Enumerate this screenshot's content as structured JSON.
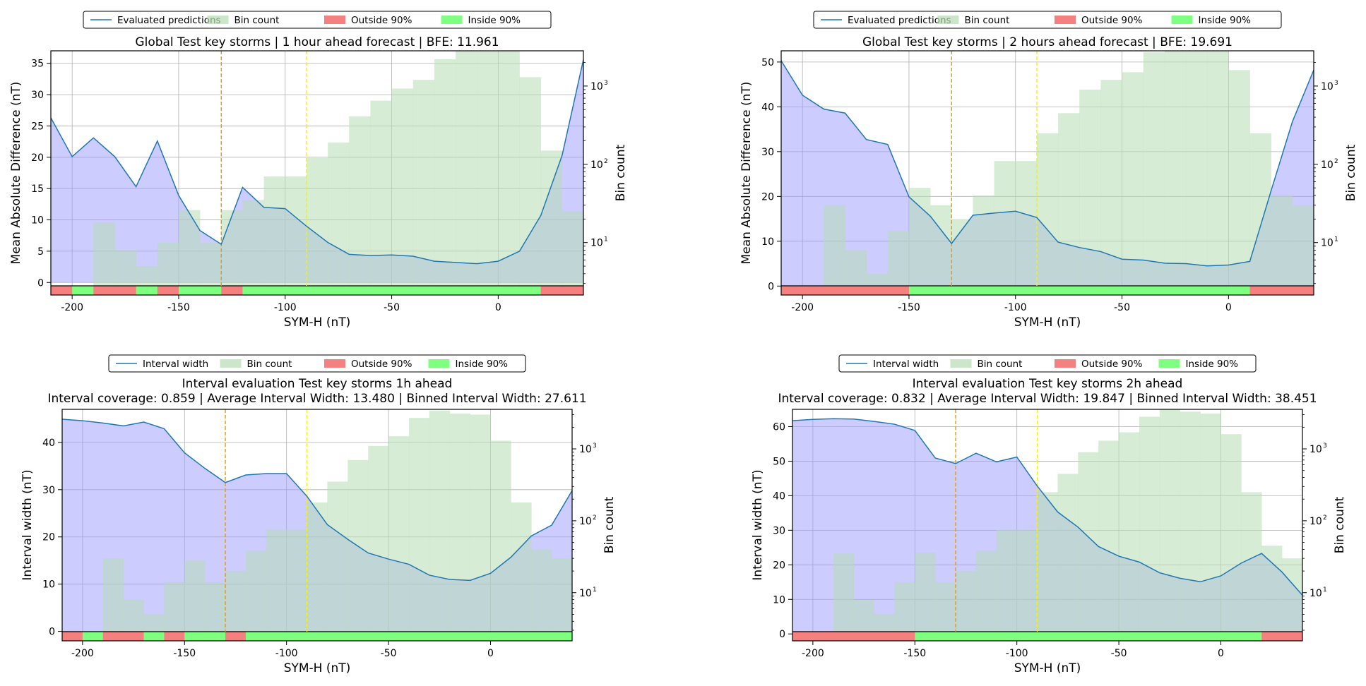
{
  "colors": {
    "line": "#1f77b4",
    "model_fill": "#9999ff",
    "bin_fill": "#b7dcb2",
    "outside": "#f48080",
    "inside": "#7fff7f",
    "vline_orange": "#e09a1a",
    "vline_yellow": "#f0f020",
    "grid": "#b0b0b0"
  },
  "bin_edges": [
    -210,
    -200,
    -190,
    -180,
    -170,
    -160,
    -150,
    -140,
    -130,
    -120,
    -110,
    -100,
    -90,
    -80,
    -70,
    -60,
    -50,
    -40,
    -30,
    -20,
    -10,
    0,
    10,
    20,
    30,
    40
  ],
  "chart_data": [
    {
      "type": "area",
      "title": "Global Test key storms | 1 hour ahead forecast | BFE: 11.961",
      "subtitle": "",
      "xlabel": "SYM-H (nT)",
      "ylabel": "Mean Absolute Difference (nT)",
      "y2label": "Bin count",
      "xlim": [
        -210,
        40
      ],
      "ylim": [
        -2,
        37
      ],
      "y2log": [
        0.33,
        3.45
      ],
      "xticks": [
        -200,
        -150,
        -100,
        -50,
        0
      ],
      "yticks": [
        0,
        5,
        10,
        15,
        20,
        25,
        30,
        35
      ],
      "y2ticks": [
        {
          "exp": 1,
          "label": "10"
        },
        {
          "exp": 2,
          "label": "10"
        },
        {
          "exp": 3,
          "label": "10"
        }
      ],
      "y2tick_sup": [
        "1",
        "2",
        "3"
      ],
      "legend": [
        "Evaluated predictions",
        "Bin count",
        "Outside 90%",
        "Inside 90%"
      ],
      "vlines": [
        -130,
        -90
      ],
      "series": [
        {
          "name": "Evaluated predictions",
          "x": [
            -210,
            -200,
            -190,
            -180,
            -170,
            -160,
            -150,
            -140,
            -130,
            -120,
            -110,
            -100,
            -90,
            -80,
            -70,
            -60,
            -50,
            -40,
            -30,
            -20,
            -10,
            0,
            10,
            20,
            30,
            40
          ],
          "values": [
            26.3,
            20.1,
            23.1,
            20.1,
            15.3,
            22.6,
            13.9,
            8.3,
            6.1,
            15.2,
            12.0,
            11.8,
            9.0,
            6.4,
            4.5,
            4.3,
            4.4,
            4.2,
            3.4,
            3.2,
            3.0,
            3.4,
            5.0,
            10.7,
            20.3,
            35.6
          ]
        },
        {
          "name": "Bin count",
          "values": [
            2,
            2,
            18,
            8,
            5,
            10,
            26,
            10,
            26,
            35,
            70,
            70,
            120,
            190,
            410,
            650,
            930,
            1200,
            2200,
            3300,
            3200,
            3100,
            1300,
            150,
            25
          ]
        }
      ],
      "coverage_strip": [
        "outside",
        "inside",
        "outside",
        "outside",
        "inside",
        "outside",
        "inside",
        "inside",
        "outside",
        "inside",
        "inside",
        "inside",
        "inside",
        "inside",
        "inside",
        "inside",
        "inside",
        "inside",
        "inside",
        "inside",
        "inside",
        "inside",
        "inside",
        "outside",
        "outside"
      ]
    },
    {
      "type": "area",
      "title": "Global Test key storms | 2 hours ahead forecast | BFE: 19.691",
      "subtitle": "",
      "xlabel": "SYM-H (nT)",
      "ylabel": "Mean Absolute Difference (nT)",
      "y2label": "Bin count",
      "xlim": [
        -210,
        40
      ],
      "ylim": [
        -2,
        52.5
      ],
      "y2log": [
        0.33,
        3.45
      ],
      "xticks": [
        -200,
        -150,
        -100,
        -50,
        0
      ],
      "yticks": [
        0,
        10,
        20,
        30,
        40,
        50
      ],
      "y2ticks": [
        {
          "exp": 1,
          "label": "10"
        },
        {
          "exp": 2,
          "label": "10"
        },
        {
          "exp": 3,
          "label": "10"
        }
      ],
      "y2tick_sup": [
        "1",
        "2",
        "3"
      ],
      "legend": [
        "Evaluated predictions",
        "Bin count",
        "Outside 90%",
        "Inside 90%"
      ],
      "vlines": [
        -130,
        -90
      ],
      "series": [
        {
          "name": "Evaluated predictions",
          "x": [
            -210,
            -200,
            -190,
            -180,
            -170,
            -160,
            -150,
            -140,
            -130,
            -120,
            -110,
            -100,
            -90,
            -80,
            -70,
            -60,
            -50,
            -40,
            -30,
            -20,
            -10,
            0,
            10,
            20,
            30,
            40
          ],
          "values": [
            50.3,
            42.6,
            39.5,
            38.6,
            32.7,
            31.6,
            19.9,
            15.6,
            9.5,
            15.8,
            16.3,
            16.7,
            15.3,
            9.8,
            8.6,
            7.7,
            6.0,
            5.8,
            5.1,
            5.0,
            4.5,
            4.7,
            5.5,
            21.3,
            36.7,
            48.2
          ]
        },
        {
          "name": "Bin count",
          "values": [
            2,
            2,
            30,
            8,
            4,
            14,
            50,
            30,
            20,
            40,
            110,
            110,
            250,
            450,
            900,
            1200,
            1500,
            2700,
            3300,
            3100,
            3100,
            1600,
            250,
            40,
            30
          ]
        }
      ],
      "coverage_strip": [
        "outside",
        "outside",
        "outside",
        "outside",
        "outside",
        "outside",
        "inside",
        "inside",
        "inside",
        "inside",
        "inside",
        "inside",
        "inside",
        "inside",
        "inside",
        "inside",
        "inside",
        "inside",
        "inside",
        "inside",
        "inside",
        "inside",
        "outside",
        "outside",
        "outside"
      ]
    },
    {
      "type": "area",
      "title": "Interval evaluation Test key storms 1h ahead",
      "subtitle": "Interval coverage: 0.859 | Average Interval Width: 13.480 | Binned Interval Width: 27.611",
      "xlabel": "SYM-H (nT)",
      "ylabel": "Interval width (nT)",
      "y2label": "Bin count",
      "xlim": [
        -210,
        40
      ],
      "ylim": [
        -2,
        47
      ],
      "y2log": [
        0.33,
        3.55
      ],
      "xticks": [
        -200,
        -150,
        -100,
        -50,
        0
      ],
      "yticks": [
        0,
        10,
        20,
        30,
        40
      ],
      "y2ticks": [
        {
          "exp": 1,
          "label": "10"
        },
        {
          "exp": 2,
          "label": "10"
        },
        {
          "exp": 3,
          "label": "10"
        }
      ],
      "y2tick_sup": [
        "1",
        "2",
        "3"
      ],
      "legend": [
        "Interval width",
        "Bin count",
        "Outside 90%",
        "Inside 90%"
      ],
      "vlines": [
        -130,
        -90
      ],
      "series": [
        {
          "name": "Interval width",
          "x": [
            -210,
            -200,
            -190,
            -180,
            -170,
            -160,
            -150,
            -140,
            -130,
            -120,
            -110,
            -100,
            -90,
            -80,
            -70,
            -60,
            -50,
            -40,
            -30,
            -20,
            -10,
            0,
            10,
            20,
            30,
            40
          ],
          "values": [
            44.9,
            44.6,
            44.1,
            43.5,
            44.3,
            42.9,
            37.8,
            34.5,
            31.5,
            33.1,
            33.4,
            33.4,
            28.6,
            22.6,
            19.5,
            16.6,
            15.3,
            14.2,
            11.9,
            11.0,
            10.8,
            12.3,
            15.7,
            20.2,
            22.5,
            29.8
          ]
        },
        {
          "name": "Bin count",
          "values": [
            2,
            2,
            30,
            8,
            5,
            14,
            28,
            14,
            20,
            38,
            75,
            75,
            180,
            350,
            700,
            1100,
            1500,
            2700,
            3400,
            3100,
            3000,
            1300,
            180,
            40,
            30
          ]
        }
      ],
      "coverage_strip": [
        "outside",
        "inside",
        "outside",
        "outside",
        "inside",
        "outside",
        "inside",
        "inside",
        "outside",
        "inside",
        "inside",
        "inside",
        "inside",
        "inside",
        "inside",
        "inside",
        "inside",
        "inside",
        "inside",
        "inside",
        "inside",
        "inside",
        "inside",
        "inside",
        "inside"
      ]
    },
    {
      "type": "area",
      "title": "Interval evaluation Test key storms 2h ahead",
      "subtitle": "Interval coverage: 0.832 | Average Interval Width: 19.847 | Binned Interval Width: 38.451",
      "xlabel": "SYM-H (nT)",
      "ylabel": "Interval width (nT)",
      "y2label": "Bin count",
      "xlim": [
        -210,
        40
      ],
      "ylim": [
        -2,
        65
      ],
      "y2log": [
        0.33,
        3.55
      ],
      "xticks": [
        -200,
        -150,
        -100,
        -50,
        0
      ],
      "yticks": [
        0,
        10,
        20,
        30,
        40,
        50,
        60
      ],
      "y2ticks": [
        {
          "exp": 1,
          "label": "10"
        },
        {
          "exp": 2,
          "label": "10"
        },
        {
          "exp": 3,
          "label": "10"
        }
      ],
      "y2tick_sup": [
        "1",
        "2",
        "3"
      ],
      "legend": [
        "Interval width",
        "Bin count",
        "Outside 90%",
        "Inside 90%"
      ],
      "vlines": [
        -130,
        -90
      ],
      "series": [
        {
          "name": "Interval width",
          "x": [
            -210,
            -200,
            -190,
            -180,
            -170,
            -160,
            -150,
            -140,
            -130,
            -120,
            -110,
            -100,
            -90,
            -80,
            -70,
            -60,
            -50,
            -40,
            -30,
            -20,
            -10,
            0,
            10,
            20,
            30,
            40
          ],
          "values": [
            61.7,
            62.1,
            62.3,
            62.2,
            61.5,
            60.7,
            58.9,
            50.9,
            49.3,
            52.3,
            49.8,
            51.2,
            42.8,
            35.3,
            30.9,
            25.3,
            22.5,
            20.8,
            17.7,
            16.1,
            15.1,
            16.8,
            20.5,
            23.3,
            17.9,
            11.2
          ]
        },
        {
          "name": "Bin count",
          "values": [
            2,
            2,
            35,
            8,
            5,
            14,
            36,
            14,
            20,
            38,
            75,
            75,
            250,
            450,
            900,
            1300,
            1700,
            2800,
            3500,
            3300,
            3100,
            1600,
            250,
            45,
            30
          ]
        }
      ],
      "coverage_strip": [
        "outside",
        "outside",
        "outside",
        "outside",
        "outside",
        "outside",
        "inside",
        "inside",
        "inside",
        "inside",
        "inside",
        "inside",
        "inside",
        "inside",
        "inside",
        "inside",
        "inside",
        "inside",
        "inside",
        "inside",
        "inside",
        "inside",
        "inside",
        "outside",
        "outside"
      ]
    }
  ]
}
